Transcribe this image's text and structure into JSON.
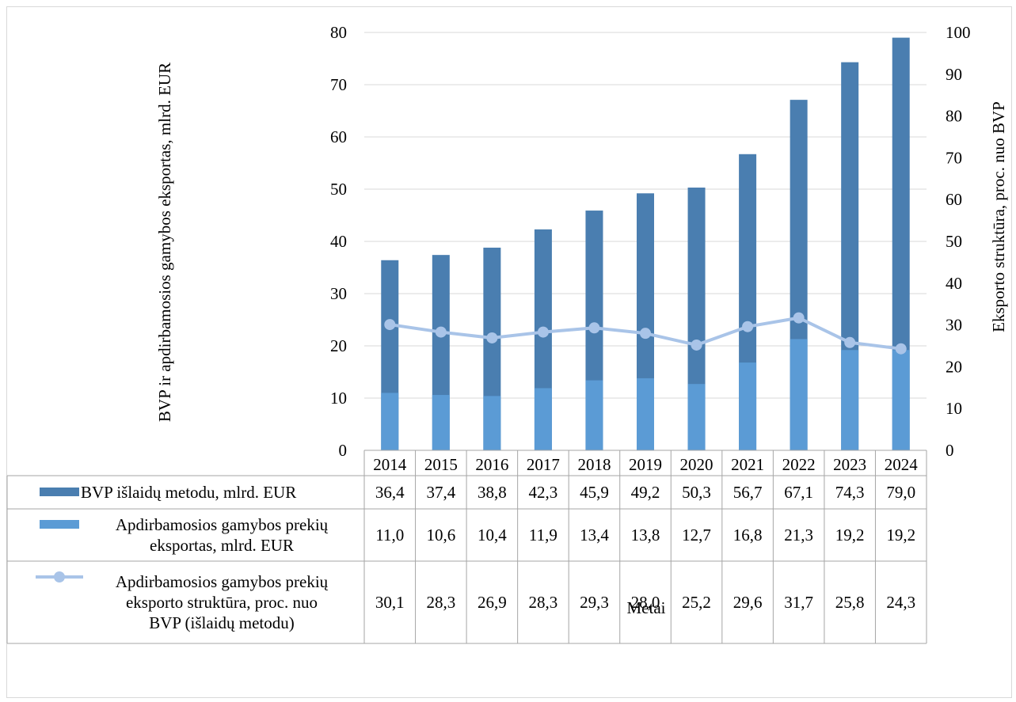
{
  "chart_data": {
    "type": "bar",
    "categories": [
      "2014",
      "2015",
      "2016",
      "2017",
      "2018",
      "2019",
      "2020",
      "2021",
      "2022",
      "2023",
      "2024"
    ],
    "series": [
      {
        "name": "BVP išlaidų metodu, mlrd. EUR",
        "kind": "bar",
        "axis": "left",
        "color": "#4a7eb0",
        "values": [
          36.4,
          37.4,
          38.8,
          42.3,
          45.9,
          49.2,
          50.3,
          56.7,
          67.1,
          74.3,
          79.0
        ],
        "display": [
          "36,4",
          "37,4",
          "38,8",
          "42,3",
          "45,9",
          "49,2",
          "50,3",
          "56,7",
          "67,1",
          "74,3",
          "79,0"
        ]
      },
      {
        "name": "Apdirbamosios gamybos prekių eksportas, mlrd. EUR",
        "kind": "bar",
        "axis": "left",
        "color": "#5b9bd5",
        "values": [
          11.0,
          10.6,
          10.4,
          11.9,
          13.4,
          13.8,
          12.7,
          16.8,
          21.3,
          19.2,
          19.2
        ],
        "display": [
          "11,0",
          "10,6",
          "10,4",
          "11,9",
          "13,4",
          "13,8",
          "12,7",
          "16,8",
          "21,3",
          "19,2",
          "19,2"
        ]
      },
      {
        "name": "Apdirbamosios gamybos prekių eksporto struktūra, proc. nuo BVP (išlaidų metodu)",
        "kind": "line",
        "axis": "right",
        "color": "#a9c4e8",
        "values": [
          30.1,
          28.3,
          26.9,
          28.3,
          29.3,
          28.0,
          25.2,
          29.6,
          31.7,
          25.8,
          24.3
        ],
        "display": [
          "30,1",
          "28,3",
          "26,9",
          "28,3",
          "29,3",
          "28,0",
          "25,2",
          "29,6",
          "31,7",
          "25,8",
          "24,3"
        ]
      }
    ],
    "legend_lines": [
      [
        "BVP išlaidų metodu, mlrd. EUR"
      ],
      [
        "Apdirbamosios gamybos prekių",
        "eksportas, mlrd. EUR"
      ],
      [
        "Apdirbamosios gamybos prekių",
        "eksporto struktūra, proc. nuo",
        "BVP (išlaidų metodu)"
      ]
    ],
    "y_left": {
      "label": "BVP ir apdirbamosios gamybos eksportas, mlrd. EUR",
      "ylim": [
        0,
        80
      ],
      "ticks": [
        "0",
        "10",
        "20",
        "30",
        "40",
        "50",
        "60",
        "70",
        "80"
      ]
    },
    "y_right": {
      "label": "Eksporto struktūra, proc. nuo BVP",
      "ylim": [
        0,
        100
      ],
      "ticks": [
        "0",
        "10",
        "20",
        "30",
        "40",
        "50",
        "60",
        "70",
        "80",
        "90",
        "100"
      ]
    },
    "xlabel": "Metai",
    "grid": true,
    "legend": "data-table"
  }
}
